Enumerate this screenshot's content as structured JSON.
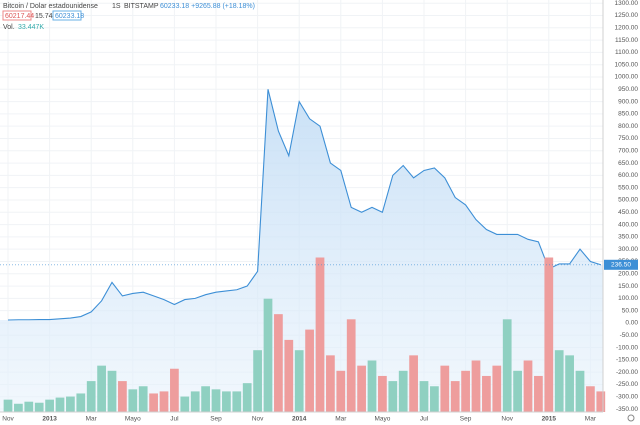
{
  "chart_data": {
    "type": "area",
    "title": "Bitcoin / Dolar estadounidense",
    "interval": "1S",
    "exchange": "BITSTAMP",
    "quote": "60233.18 +9265.88 (+18.18%)",
    "badges": [
      "60217.44",
      "15.74",
      "60233.18"
    ],
    "volume_label": "Vol.",
    "volume_value": "33.447K",
    "categories": [
      "Nov",
      null,
      null,
      null,
      "2013",
      null,
      null,
      null,
      "Mar",
      null,
      null,
      null,
      "Mayo",
      null,
      null,
      null,
      "Jul",
      null,
      null,
      null,
      "Sep",
      null,
      null,
      null,
      "Nov",
      null,
      null,
      null,
      "2014",
      null,
      null,
      null,
      "Mar",
      null,
      null,
      null,
      "Mayo",
      null,
      null,
      null,
      "Jul",
      null,
      null,
      null,
      "Sep",
      null,
      null,
      null,
      "Nov",
      null,
      null,
      null,
      "2015",
      null,
      null,
      null,
      "Mar",
      null
    ],
    "series": [
      {
        "name": "Precio",
        "color": "#3d8fd6",
        "values": [
          12,
          13,
          13,
          14,
          14,
          17,
          20,
          26,
          45,
          90,
          165,
          110,
          120,
          125,
          110,
          95,
          75,
          95,
          100,
          115,
          125,
          130,
          135,
          150,
          210,
          950,
          780,
          680,
          900,
          830,
          800,
          650,
          620,
          470,
          450,
          470,
          450,
          600,
          640,
          590,
          620,
          630,
          590,
          510,
          480,
          420,
          380,
          360,
          360,
          360,
          340,
          330,
          220,
          240,
          240,
          300,
          250,
          236.5
        ]
      },
      {
        "name": "Vol.",
        "axis": "y2",
        "color": "#8fd0c1",
        "down_color": "#ee9d9d",
        "values": [
          12,
          8,
          10,
          9,
          12,
          14,
          15,
          18,
          30,
          45,
          40,
          30,
          22,
          25,
          18,
          20,
          42,
          15,
          20,
          25,
          22,
          20,
          20,
          28,
          60,
          110,
          95,
          70,
          60,
          80,
          150,
          55,
          40,
          90,
          45,
          50,
          35,
          30,
          40,
          55,
          30,
          25,
          45,
          30,
          40,
          50,
          35,
          45,
          90,
          40,
          50,
          35,
          150,
          60,
          55,
          40,
          25,
          20
        ]
      }
    ],
    "price_marker": {
      "value": 236.5,
      "label": "236.50"
    },
    "ylim": [
      -362,
      1313
    ],
    "y2lim": [
      0,
      400
    ],
    "grid": true,
    "yticks": [
      {
        "value": -350,
        "label": "-350.00"
      },
      {
        "value": -300,
        "label": "-300.00"
      },
      {
        "value": -250,
        "label": "-250.00"
      },
      {
        "value": -200,
        "label": "-200.00"
      },
      {
        "value": -150,
        "label": "-150.00"
      },
      {
        "value": -100,
        "label": "-100.00"
      },
      {
        "value": -50,
        "label": "-50.00"
      },
      {
        "value": 0,
        "label": "0.00"
      },
      {
        "value": 50,
        "label": "50.00"
      },
      {
        "value": 100,
        "label": "100.00"
      },
      {
        "value": 150,
        "label": "150.00"
      },
      {
        "value": 200,
        "label": "200.00"
      },
      {
        "value": 250,
        "label": "250.00"
      },
      {
        "value": 300,
        "label": "300.00"
      },
      {
        "value": 350,
        "label": "350.00"
      },
      {
        "value": 400,
        "label": "400.00"
      },
      {
        "value": 450,
        "label": "450.00"
      },
      {
        "value": 500,
        "label": "500.00"
      },
      {
        "value": 550,
        "label": "550.00"
      },
      {
        "value": 600,
        "label": "600.00"
      },
      {
        "value": 650,
        "label": "650.00"
      },
      {
        "value": 700,
        "label": "700.00"
      },
      {
        "value": 750,
        "label": "750.00"
      },
      {
        "value": 800,
        "label": "800.00"
      },
      {
        "value": 850,
        "label": "850.00"
      },
      {
        "value": 900,
        "label": "900.00"
      },
      {
        "value": 950,
        "label": "950.00"
      },
      {
        "value": 1000,
        "label": "1000.00"
      },
      {
        "value": 1050,
        "label": "1050.00"
      },
      {
        "value": 1100,
        "label": "1100.00"
      },
      {
        "value": 1150,
        "label": "1150.00"
      },
      {
        "value": 1200,
        "label": "1200.00"
      },
      {
        "value": 1250,
        "label": "1250.00"
      },
      {
        "value": 1300,
        "label": "1300.00"
      }
    ]
  }
}
